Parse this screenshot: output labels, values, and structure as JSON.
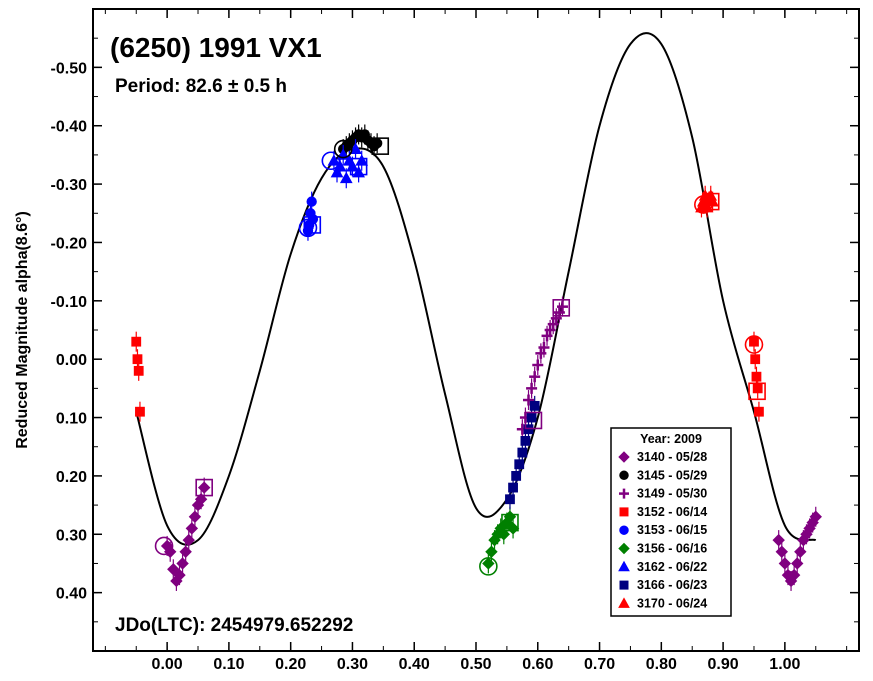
{
  "chart_data": {
    "type": "scatter",
    "title": "(6250) 1991 VX1",
    "subtitle": "Period: 82.6 ± 0.5 h",
    "footer": "JDo(LTC): 2454979.652292",
    "xlabel": "",
    "ylabel": "Reduced Magnitude alpha(8.6°)",
    "xlim": [
      -0.12,
      1.12
    ],
    "ylim": [
      0.5,
      -0.6
    ],
    "y_inverted": true,
    "grid": false,
    "x_ticks": [
      "0.00",
      "0.10",
      "0.20",
      "0.30",
      "0.40",
      "0.50",
      "0.60",
      "0.70",
      "0.80",
      "0.90",
      "1.00"
    ],
    "x_tick_values": [
      0,
      0.1,
      0.2,
      0.3,
      0.4,
      0.5,
      0.6,
      0.7,
      0.8,
      0.9,
      1.0
    ],
    "y_ticks": [
      "-0.50",
      "-0.40",
      "-0.30",
      "-0.20",
      "-0.10",
      "0.00",
      "0.10",
      "0.20",
      "0.30",
      "0.40"
    ],
    "y_tick_values": [
      -0.5,
      -0.4,
      -0.3,
      -0.2,
      -0.1,
      0,
      0.1,
      0.2,
      0.3,
      0.4
    ],
    "legend": {
      "title": "Year: 2009",
      "placement": "lower-right",
      "entries": [
        "3140 - 05/28",
        "3145 - 05/29",
        "3149 - 05/30",
        "3152 - 06/14",
        "3153 - 06/15",
        "3156 - 06/16",
        "3162 - 06/22",
        "3166 - 06/23",
        "3170 - 06/24"
      ]
    },
    "fit_curve": {
      "name": "",
      "x": [
        -0.05,
        0.0,
        0.05,
        0.1,
        0.15,
        0.2,
        0.25,
        0.3,
        0.35,
        0.4,
        0.45,
        0.5,
        0.55,
        0.6,
        0.65,
        0.7,
        0.75,
        0.8,
        0.85,
        0.9,
        0.95,
        1.0,
        1.05
      ],
      "y": [
        0.09,
        0.285,
        0.31,
        0.2,
        0.02,
        -0.18,
        -0.31,
        -0.36,
        -0.33,
        -0.17,
        0.06,
        0.255,
        0.24,
        0.1,
        -0.15,
        -0.4,
        -0.54,
        -0.54,
        -0.38,
        -0.1,
        0.09,
        0.285,
        0.31
      ]
    },
    "series": [
      {
        "name": "3140 - 05/28",
        "color": "#800080",
        "marker": "diamond",
        "x": [
          0.0,
          0.005,
          0.01,
          0.015,
          0.02,
          0.025,
          0.03,
          0.035,
          0.04,
          0.045,
          0.05,
          0.055,
          0.06,
          0.99,
          0.995,
          1.0,
          1.005,
          1.01,
          1.015,
          1.02,
          1.025,
          1.03,
          1.035,
          1.04,
          1.045,
          1.05
        ],
        "y": [
          0.32,
          0.33,
          0.36,
          0.38,
          0.37,
          0.35,
          0.33,
          0.31,
          0.29,
          0.27,
          0.25,
          0.24,
          0.22,
          0.31,
          0.33,
          0.35,
          0.37,
          0.38,
          0.37,
          0.35,
          0.33,
          0.31,
          0.3,
          0.29,
          0.28,
          0.27
        ]
      },
      {
        "name": "3145 - 05/29",
        "color": "#000000",
        "marker": "circle",
        "x": [
          0.285,
          0.29,
          0.295,
          0.3,
          0.305,
          0.31,
          0.315,
          0.32,
          0.325,
          0.33,
          0.335,
          0.34
        ],
        "y": [
          -0.36,
          -0.365,
          -0.37,
          -0.375,
          -0.38,
          -0.385,
          -0.38,
          -0.385,
          -0.375,
          -0.37,
          -0.365,
          -0.37
        ]
      },
      {
        "name": "3149 - 05/30",
        "color": "#800080",
        "marker": "plus",
        "x": [
          0.575,
          0.58,
          0.585,
          0.59,
          0.595,
          0.6,
          0.605,
          0.61,
          0.615,
          0.62,
          0.625,
          0.63,
          0.635,
          0.64
        ],
        "y": [
          0.12,
          0.1,
          0.07,
          0.05,
          0.03,
          0.01,
          -0.01,
          -0.02,
          -0.04,
          -0.05,
          -0.06,
          -0.07,
          -0.08,
          -0.09
        ]
      },
      {
        "name": "3152 - 06/14",
        "color": "#ff0000",
        "marker": "square",
        "x": [
          -0.05,
          -0.048,
          -0.046,
          -0.044,
          0.95,
          0.952,
          0.954,
          0.956,
          0.958
        ],
        "y": [
          -0.03,
          0.0,
          0.02,
          0.09,
          -0.03,
          0.0,
          0.03,
          0.05,
          0.09
        ]
      },
      {
        "name": "3153 - 06/15",
        "color": "#0000ff",
        "marker": "circle",
        "x": [
          0.228,
          0.23,
          0.232,
          0.234,
          0.236
        ],
        "y": [
          -0.22,
          -0.23,
          -0.25,
          -0.27,
          -0.24
        ]
      },
      {
        "name": "3156 - 06/16",
        "color": "#008000",
        "marker": "diamond",
        "x": [
          0.52,
          0.525,
          0.53,
          0.535,
          0.54,
          0.545,
          0.55,
          0.555,
          0.56
        ],
        "y": [
          0.35,
          0.33,
          0.31,
          0.3,
          0.29,
          0.3,
          0.28,
          0.27,
          0.29
        ]
      },
      {
        "name": "3162 - 06/22",
        "color": "#0000ff",
        "marker": "triangle",
        "x": [
          0.27,
          0.275,
          0.28,
          0.285,
          0.29,
          0.295,
          0.3,
          0.305,
          0.31,
          0.315
        ],
        "y": [
          -0.34,
          -0.32,
          -0.33,
          -0.35,
          -0.31,
          -0.34,
          -0.33,
          -0.36,
          -0.32,
          -0.34
        ]
      },
      {
        "name": "3166 - 06/23",
        "color": "#000080",
        "marker": "square",
        "x": [
          0.555,
          0.56,
          0.565,
          0.57,
          0.575,
          0.58,
          0.585,
          0.59,
          0.595
        ],
        "y": [
          0.24,
          0.22,
          0.2,
          0.18,
          0.16,
          0.14,
          0.12,
          0.1,
          0.08
        ]
      },
      {
        "name": "3170 - 06/24",
        "color": "#ff0000",
        "marker": "triangle",
        "x": [
          0.865,
          0.868,
          0.871,
          0.874,
          0.877,
          0.88,
          0.883
        ],
        "y": [
          -0.26,
          -0.27,
          -0.28,
          -0.26,
          -0.27,
          -0.28,
          -0.27
        ]
      }
    ],
    "open_markers": [
      {
        "shape": "circle",
        "color": "#800080",
        "x": -0.005,
        "y": 0.32
      },
      {
        "shape": "square",
        "color": "#800080",
        "x": 0.06,
        "y": 0.22
      },
      {
        "shape": "square",
        "color": "#800080",
        "x": 0.593,
        "y": 0.105
      },
      {
        "shape": "square",
        "color": "#800080",
        "x": 0.638,
        "y": -0.088
      },
      {
        "shape": "circle",
        "color": "#0000ff",
        "x": 0.228,
        "y": -0.225
      },
      {
        "shape": "square",
        "color": "#0000ff",
        "x": 0.235,
        "y": -0.23
      },
      {
        "shape": "circle",
        "color": "#0000ff",
        "x": 0.265,
        "y": -0.34
      },
      {
        "shape": "square",
        "color": "#0000ff",
        "x": 0.31,
        "y": -0.33
      },
      {
        "shape": "circle",
        "color": "#000000",
        "x": 0.285,
        "y": -0.36
      },
      {
        "shape": "square",
        "color": "#000000",
        "x": 0.345,
        "y": -0.365
      },
      {
        "shape": "circle",
        "color": "#008000",
        "x": 0.52,
        "y": 0.355
      },
      {
        "shape": "square",
        "color": "#008000",
        "x": 0.555,
        "y": 0.28
      },
      {
        "shape": "circle",
        "color": "#ff0000",
        "x": 0.868,
        "y": -0.265
      },
      {
        "shape": "square",
        "color": "#ff0000",
        "x": 0.88,
        "y": -0.27
      },
      {
        "shape": "circle",
        "color": "#ff0000",
        "x": 0.95,
        "y": -0.025
      },
      {
        "shape": "square",
        "color": "#ff0000",
        "x": 0.955,
        "y": 0.055
      }
    ]
  }
}
